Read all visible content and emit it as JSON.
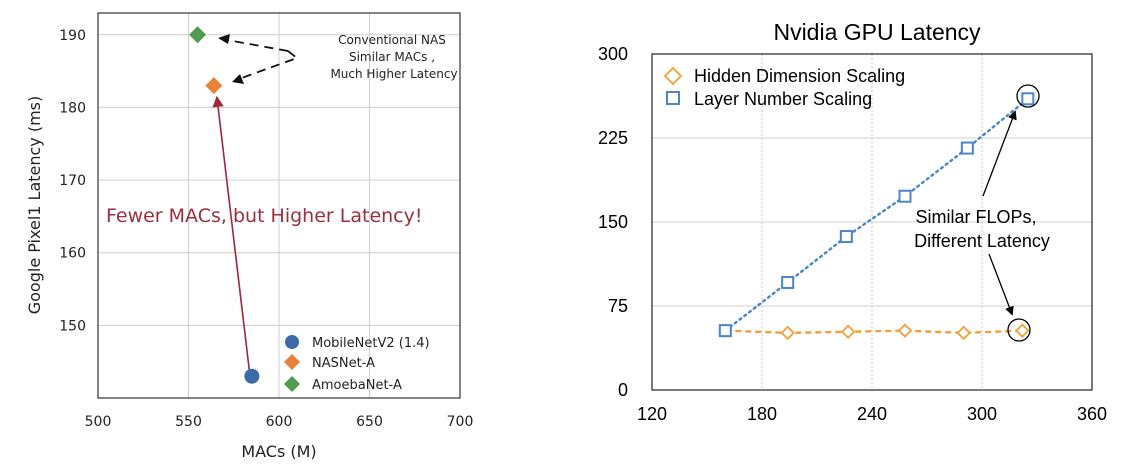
{
  "chart_data": [
    {
      "type": "scatter",
      "title": "",
      "xlabel": "MACs (M)",
      "ylabel": "Google Pixel1 Latency (ms)",
      "xlim": [
        500,
        700
      ],
      "ylim": [
        140,
        193
      ],
      "xticks": [
        "500",
        "550",
        "600",
        "650",
        "700"
      ],
      "yticks": [
        "150",
        "160",
        "170",
        "180",
        "190"
      ],
      "grid": true,
      "legend_position": "bottom-right",
      "series": [
        {
          "name": "MobileNetV2 (1.4)",
          "marker": "circle",
          "color": "#3b6aa8",
          "points": [
            {
              "x": 585,
              "y": 143
            }
          ]
        },
        {
          "name": "NASNet-A",
          "marker": "diamond",
          "color": "#e8823a",
          "points": [
            {
              "x": 564,
              "y": 183
            }
          ]
        },
        {
          "name": "AmoebaNet-A",
          "marker": "diamond",
          "color": "#4f9b4f",
          "points": [
            {
              "x": 555,
              "y": 190
            }
          ]
        }
      ],
      "annotations": [
        {
          "lines": [
            "Conventional NAS",
            "Similar MACs ,",
            "Much Higher Latency"
          ]
        },
        {
          "lines": [
            "Fewer MACs, but Higher Latency!"
          ],
          "color": "#9b2f3f"
        }
      ]
    },
    {
      "type": "line",
      "title": "Nvidia GPU Latency",
      "xlabel": "",
      "ylabel": "",
      "xlim": [
        120,
        360
      ],
      "ylim": [
        0,
        300
      ],
      "xticks": [
        "120",
        "180",
        "240",
        "300",
        "360"
      ],
      "yticks": [
        "0",
        "75",
        "150",
        "225",
        "300"
      ],
      "grid": true,
      "legend_position": "top-left",
      "series": [
        {
          "name": "Hidden Dimension Scaling",
          "marker": "diamond",
          "color": "#f0a035",
          "style": "dashed",
          "x": [
            160,
            194,
            227,
            258,
            290,
            322
          ],
          "y": [
            53,
            51,
            52,
            53,
            51,
            53
          ]
        },
        {
          "name": "Layer Number Scaling",
          "marker": "square",
          "color": "#4a86c8",
          "style": "dotted",
          "x": [
            160,
            194,
            226,
            258,
            292,
            325
          ],
          "y": [
            53,
            96,
            137,
            173,
            216,
            260
          ]
        }
      ],
      "annotations": [
        {
          "lines": [
            "Similar FLOPs,",
            "Different Latency"
          ]
        }
      ]
    }
  ]
}
